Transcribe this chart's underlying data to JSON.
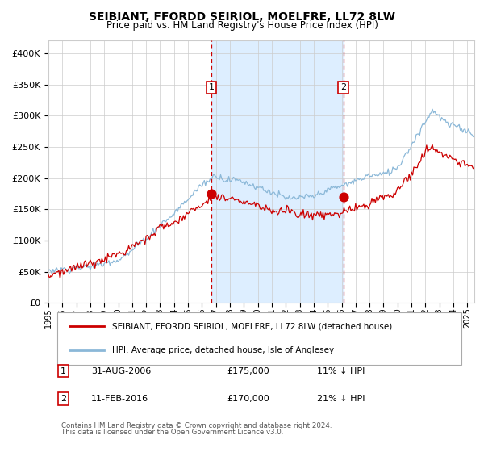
{
  "title": "SEIBIANT, FFORDD SEIRIOL, MOELFRE, LL72 8LW",
  "subtitle": "Price paid vs. HM Land Registry's House Price Index (HPI)",
  "legend_line1": "SEIBIANT, FFORDD SEIRIOL, MOELFRE, LL72 8LW (detached house)",
  "legend_line2": "HPI: Average price, detached house, Isle of Anglesey",
  "marker1_date": "31-AUG-2006",
  "marker1_price": "£175,000",
  "marker1_hpi": "11% ↓ HPI",
  "marker2_date": "11-FEB-2016",
  "marker2_price": "£170,000",
  "marker2_hpi": "21% ↓ HPI",
  "footnote1": "Contains HM Land Registry data © Crown copyright and database right 2024.",
  "footnote2": "This data is licensed under the Open Government Licence v3.0.",
  "ylabel_ticks": [
    "£0",
    "£50K",
    "£100K",
    "£150K",
    "£200K",
    "£250K",
    "£300K",
    "£350K",
    "£400K"
  ],
  "ytick_values": [
    0,
    50000,
    100000,
    150000,
    200000,
    250000,
    300000,
    350000,
    400000
  ],
  "hpi_color": "#8bb8d8",
  "property_color": "#cc0000",
  "background_color": "#ffffff",
  "shaded_region_color": "#ddeeff",
  "vline_color": "#cc0000",
  "grid_color": "#cccccc",
  "marker1_year": 2006.667,
  "marker2_year": 2016.117,
  "marker1_value": 175000,
  "marker2_value": 170000,
  "xmin": 1995.0,
  "xmax": 2025.5,
  "ymin": 0,
  "ymax": 420000
}
